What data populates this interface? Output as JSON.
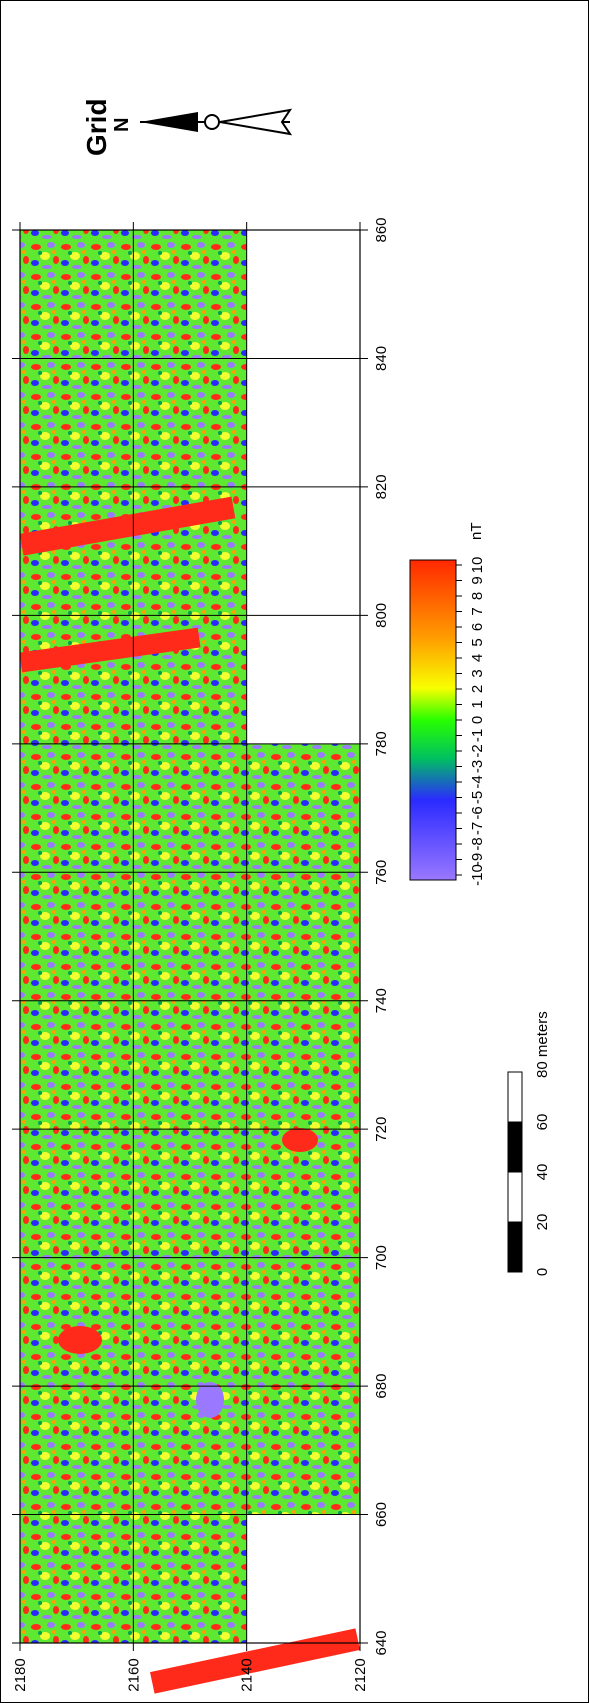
{
  "map": {
    "title": "Grid",
    "north_label": "N",
    "x_axis_ticks": [
      "640",
      "660",
      "680",
      "700",
      "720",
      "740",
      "760",
      "780",
      "800",
      "820",
      "840",
      "860"
    ],
    "y_axis_ticks": [
      "2180",
      "2160",
      "2140",
      "2120"
    ],
    "surveyed_blocks": [
      {
        "x": [
          640,
          660
        ],
        "y": [
          2140,
          2180
        ]
      },
      {
        "x": [
          660,
          780
        ],
        "y": [
          2120,
          2180
        ]
      },
      {
        "x": [
          780,
          860
        ],
        "y": [
          2140,
          2180
        ]
      }
    ]
  },
  "legend": {
    "unit": "nT",
    "ticks": [
      "-10",
      "-9",
      "-8",
      "-7",
      "-6",
      "-5",
      "-4",
      "-3",
      "-2",
      "-1",
      "0",
      "1",
      "2",
      "3",
      "4",
      "5",
      "6",
      "7",
      "8",
      "9",
      "10"
    ],
    "colors": [
      "#9a78ff",
      "#2a2aff",
      "#00c060",
      "#28ff00",
      "#f8ff00",
      "#ffa000",
      "#ff2800"
    ]
  },
  "scale_bar": {
    "ticks": [
      "0",
      "20",
      "40",
      "60"
    ],
    "end_label": "80 meters"
  }
}
